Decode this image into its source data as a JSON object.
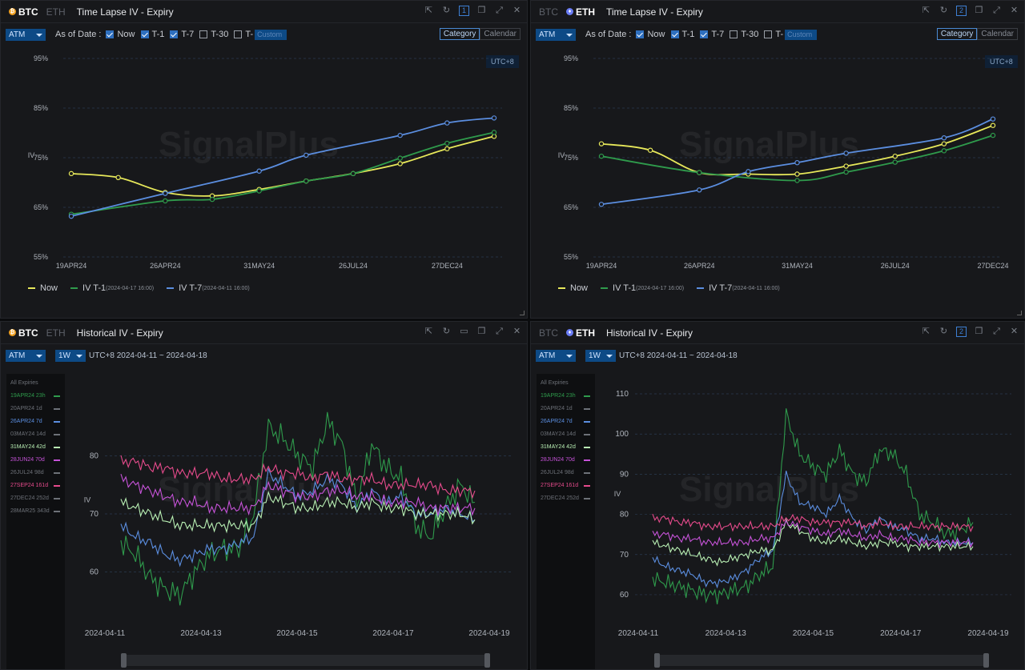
{
  "panels": {
    "tl": {
      "coins": [
        "BTC",
        "ETH"
      ],
      "active_coin": "BTC",
      "title": "Time Lapse IV - Expiry",
      "page_num": "1",
      "atm": "ATM",
      "as_of": "As of Date :",
      "checks": [
        {
          "label": "Now",
          "on": true
        },
        {
          "label": "T-1",
          "on": true
        },
        {
          "label": "T-7",
          "on": true
        },
        {
          "label": "T-30",
          "on": false
        },
        {
          "label": "T-",
          "on": false
        }
      ],
      "t_input": "Custom",
      "view_tabs": [
        "Category",
        "Calendar"
      ],
      "utc": "UTC+8",
      "legend": [
        {
          "label": "Now",
          "sub": "",
          "color": "#e7e85a"
        },
        {
          "label": "IV T-1",
          "sub": "(2024-04-17 16:00)",
          "color": "#2f9b4c"
        },
        {
          "label": "IV T-7",
          "sub": "(2024-04-11 16:00)",
          "color": "#5b8ee0"
        }
      ]
    },
    "tr": {
      "coins": [
        "BTC",
        "ETH"
      ],
      "active_coin": "ETH",
      "title": "Time Lapse IV - Expiry",
      "page_num": "2",
      "atm": "ATM",
      "as_of": "As of Date :",
      "checks": [
        {
          "label": "Now",
          "on": true
        },
        {
          "label": "T-1",
          "on": true
        },
        {
          "label": "T-7",
          "on": true
        },
        {
          "label": "T-30",
          "on": false
        },
        {
          "label": "T-",
          "on": false
        }
      ],
      "t_input": "Custom",
      "view_tabs": [
        "Category",
        "Calendar"
      ],
      "utc": "UTC+8",
      "legend": [
        {
          "label": "Now",
          "sub": "",
          "color": "#e7e85a"
        },
        {
          "label": "IV T-1",
          "sub": "(2024-04-17 16:00)",
          "color": "#2f9b4c"
        },
        {
          "label": "IV T-7",
          "sub": "(2024-04-11 16:00)",
          "color": "#5b8ee0"
        }
      ]
    },
    "bl": {
      "coins": [
        "BTC",
        "ETH"
      ],
      "active_coin": "BTC",
      "title": "Historical IV - Expiry",
      "atm": "ATM",
      "interval": "1W",
      "range": "UTC+8 2024-04-11 ~ 2024-04-18",
      "expiries": [
        {
          "label": "All Expiries",
          "color": "#6d7178",
          "line": false
        },
        {
          "label": "19APR24 23h",
          "color": "#2f9b4c",
          "line": true
        },
        {
          "label": "20APR24 1d",
          "color": "#6d7178",
          "line": true
        },
        {
          "label": "26APR24 7d",
          "color": "#5b8ee0",
          "line": true
        },
        {
          "label": "03MAY24 14d",
          "color": "#6d7178",
          "line": true
        },
        {
          "label": "31MAY24 42d",
          "color": "#b9f0b4",
          "line": true
        },
        {
          "label": "28JUN24 70d",
          "color": "#c653d8",
          "line": true
        },
        {
          "label": "26JUL24 98d",
          "color": "#6d7178",
          "line": true
        },
        {
          "label": "27SEP24 161d",
          "color": "#e64b8c",
          "line": true
        },
        {
          "label": "27DEC24 252d",
          "color": "#6d7178",
          "line": true
        },
        {
          "label": "28MAR25 343d",
          "color": "#6d7178",
          "line": true
        }
      ]
    },
    "br": {
      "coins": [
        "BTC",
        "ETH"
      ],
      "active_coin": "ETH",
      "title": "Historical IV - Expiry",
      "page_num": "2",
      "atm": "ATM",
      "interval": "1W",
      "range": "UTC+8 2024-04-11 ~ 2024-04-18",
      "expiries": [
        {
          "label": "All Expiries",
          "color": "#6d7178",
          "line": false
        },
        {
          "label": "19APR24 23h",
          "color": "#2f9b4c",
          "line": true
        },
        {
          "label": "20APR24 1d",
          "color": "#6d7178",
          "line": true
        },
        {
          "label": "26APR24 7d",
          "color": "#5b8ee0",
          "line": true
        },
        {
          "label": "03MAY24 14d",
          "color": "#6d7178",
          "line": true
        },
        {
          "label": "31MAY24 42d",
          "color": "#b9f0b4",
          "line": true
        },
        {
          "label": "28JUN24 70d",
          "color": "#c653d8",
          "line": true
        },
        {
          "label": "26JUL24 98d",
          "color": "#6d7178",
          "line": true
        },
        {
          "label": "27SEP24 161d",
          "color": "#e64b8c",
          "line": true
        },
        {
          "label": "27DEC24 252d",
          "color": "#6d7178",
          "line": true
        }
      ]
    }
  },
  "watermark": "SignalPlus",
  "chart_data": [
    {
      "type": "line",
      "panel": "tl",
      "categories": [
        "19APR24",
        "20APR24",
        "26APR24",
        "03MAY24",
        "31MAY24",
        "28JUN24",
        "26JUL24",
        "27SEP24",
        "27DEC24",
        "28MAR25"
      ],
      "xticks": [
        "19APR24",
        "26APR24",
        "31MAY24",
        "26JUL24",
        "27DEC24"
      ],
      "ylabel": "IV",
      "yticks": [
        "55%",
        "65%",
        "75%",
        "85%",
        "95%"
      ],
      "ylim": [
        55,
        95
      ],
      "series": [
        {
          "name": "Now",
          "color": "#e7e85a",
          "values": [
            71.8,
            71.0,
            68.0,
            67.3,
            68.6,
            70.3,
            71.8,
            73.8,
            76.8,
            79.3
          ]
        },
        {
          "name": "IV T-1",
          "color": "#2f9b4c",
          "values": [
            63.6,
            null,
            66.3,
            66.6,
            68.3,
            70.3,
            71.8,
            74.9,
            77.9,
            80.1
          ]
        },
        {
          "name": "IV T-7",
          "color": "#5b8ee0",
          "values": [
            63.2,
            null,
            67.8,
            null,
            72.3,
            75.5,
            null,
            79.5,
            82.0,
            83.0
          ]
        }
      ]
    },
    {
      "type": "line",
      "panel": "tr",
      "categories": [
        "19APR24",
        "20APR24",
        "26APR24",
        "03MAY24",
        "31MAY24",
        "28JUN24",
        "26JUL24",
        "27SEP24",
        "27DEC24"
      ],
      "xticks": [
        "19APR24",
        "26APR24",
        "31MAY24",
        "26JUL24",
        "27DEC24"
      ],
      "ylabel": "IV",
      "yticks": [
        "55%",
        "65%",
        "75%",
        "85%",
        "95%"
      ],
      "ylim": [
        55,
        95
      ],
      "series": [
        {
          "name": "Now",
          "color": "#e7e85a",
          "values": [
            77.8,
            76.5,
            72.0,
            71.7,
            71.7,
            73.3,
            75.3,
            77.8,
            81.5
          ]
        },
        {
          "name": "IV T-1",
          "color": "#2f9b4c",
          "values": [
            75.3,
            null,
            72.0,
            null,
            70.4,
            72.1,
            74.1,
            76.4,
            79.5
          ]
        },
        {
          "name": "IV T-7",
          "color": "#5b8ee0",
          "values": [
            65.6,
            null,
            68.5,
            72.2,
            74.0,
            75.9,
            null,
            79.0,
            82.8
          ]
        }
      ]
    },
    {
      "type": "line",
      "panel": "bl",
      "xticks": [
        "2024-04-11",
        "2024-04-13",
        "2024-04-15",
        "2024-04-17",
        "2024-04-19"
      ],
      "ylabel": "IV",
      "yticks": [
        "60",
        "70",
        "80"
      ],
      "ylim": [
        54,
        90
      ],
      "series": [
        {
          "name": "19APR24 23h",
          "color": "#2f9b4c",
          "values": [
            65,
            63,
            59,
            57,
            56,
            60,
            63,
            64,
            64,
            70,
            85,
            83,
            80,
            78,
            86,
            82,
            72,
            82,
            78,
            76,
            68,
            66,
            71,
            75,
            72
          ]
        },
        {
          "name": "26APR24 7d",
          "color": "#5b8ee0",
          "values": [
            68,
            66,
            65,
            63,
            62,
            63,
            64,
            64,
            65,
            66,
            77,
            75,
            73,
            74,
            76,
            75,
            71,
            74,
            72,
            73,
            70,
            70,
            71,
            70,
            69
          ]
        },
        {
          "name": "31MAY24 42d",
          "color": "#b9f0b4",
          "values": [
            72,
            71,
            70,
            69,
            68,
            68,
            68,
            68,
            68,
            68,
            73,
            72,
            71,
            71,
            72,
            72,
            71,
            72,
            71,
            71,
            70,
            70,
            70,
            70,
            69
          ]
        },
        {
          "name": "28JUN24 70d",
          "color": "#c653d8",
          "values": [
            76,
            75,
            74,
            73,
            72,
            72,
            71,
            71,
            71,
            71,
            75,
            74,
            73,
            73,
            74,
            74,
            73,
            73,
            72,
            72,
            72,
            71,
            71,
            71,
            71
          ]
        },
        {
          "name": "27SEP24 161d",
          "color": "#e64b8c",
          "values": [
            79,
            79,
            78,
            78,
            77,
            77,
            77,
            76,
            76,
            76,
            78,
            77,
            77,
            76,
            77,
            76,
            76,
            76,
            75,
            75,
            75,
            75,
            74,
            74,
            74
          ]
        }
      ]
    },
    {
      "type": "line",
      "panel": "br",
      "xticks": [
        "2024-04-11",
        "2024-04-13",
        "2024-04-15",
        "2024-04-17",
        "2024-04-19"
      ],
      "ylabel": "IV",
      "yticks": [
        "60",
        "70",
        "80",
        "90",
        "100",
        "110"
      ],
      "ylim": [
        57,
        112
      ],
      "series": [
        {
          "name": "19APR24 23h",
          "color": "#2f9b4c",
          "values": [
            64,
            63,
            62,
            61,
            60,
            60,
            61,
            62,
            65,
            67,
            105,
            95,
            92,
            90,
            96,
            90,
            88,
            96,
            95,
            90,
            80,
            78,
            75,
            76,
            78
          ]
        },
        {
          "name": "26APR24 7d",
          "color": "#5b8ee0",
          "values": [
            69,
            67,
            66,
            65,
            63,
            63,
            64,
            66,
            69,
            71,
            90,
            83,
            82,
            80,
            84,
            79,
            76,
            79,
            77,
            76,
            74,
            74,
            73,
            73,
            73
          ]
        },
        {
          "name": "31MAY24 42d",
          "color": "#b9f0b4",
          "values": [
            73,
            72,
            71,
            70,
            69,
            68,
            69,
            70,
            71,
            71,
            78,
            76,
            74,
            73,
            74,
            73,
            72,
            73,
            73,
            72,
            72,
            72,
            72,
            72,
            72
          ]
        },
        {
          "name": "28JUN24 70d",
          "color": "#c653d8",
          "values": [
            75,
            75,
            74,
            74,
            73,
            73,
            73,
            73,
            74,
            74,
            78,
            77,
            76,
            75,
            76,
            75,
            74,
            75,
            74,
            74,
            73,
            73,
            73,
            73,
            73
          ]
        },
        {
          "name": "27SEP24 161d",
          "color": "#e64b8c",
          "values": [
            79,
            79,
            78,
            78,
            77,
            77,
            77,
            77,
            77,
            77,
            79,
            79,
            78,
            78,
            78,
            78,
            77,
            78,
            77,
            77,
            77,
            77,
            77,
            77,
            77
          ]
        }
      ]
    }
  ]
}
